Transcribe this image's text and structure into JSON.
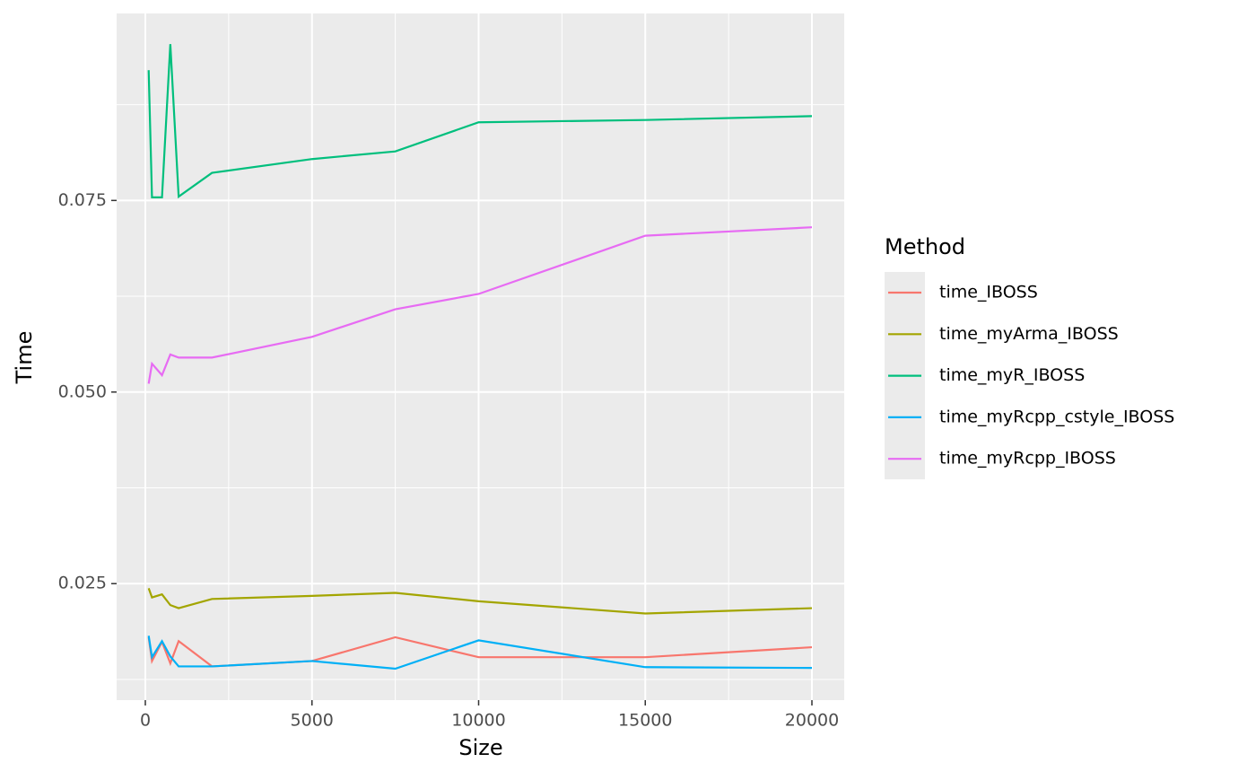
{
  "chart_data": {
    "type": "line",
    "x_label": "Size",
    "y_label": "Time",
    "legend_title": "Method",
    "x": [
      100,
      200,
      500,
      750,
      1000,
      2000,
      5000,
      7500,
      10000,
      15000,
      20000
    ],
    "series": [
      {
        "name": "time_IBOSS",
        "color": "#F8766D",
        "values": [
          0.018,
          0.0149,
          0.0174,
          0.0146,
          0.0175,
          0.0142,
          0.0149,
          0.018,
          0.0154,
          0.0154,
          0.0167
        ]
      },
      {
        "name": "time_myArma_IBOSS",
        "color": "#A3A500",
        "values": [
          0.0244,
          0.0232,
          0.0236,
          0.0222,
          0.0218,
          0.023,
          0.0234,
          0.0238,
          0.0227,
          0.0211,
          0.0218
        ]
      },
      {
        "name": "time_myR_IBOSS",
        "color": "#00BF7D",
        "values": [
          0.092,
          0.0754,
          0.0754,
          0.0954,
          0.0755,
          0.0786,
          0.0804,
          0.0814,
          0.0852,
          0.0855,
          0.086
        ]
      },
      {
        "name": "time_myRcpp_cstyle_IBOSS",
        "color": "#00B0F6",
        "values": [
          0.0182,
          0.0154,
          0.0175,
          0.0155,
          0.0142,
          0.0142,
          0.0149,
          0.0139,
          0.0176,
          0.0141,
          0.014
        ]
      },
      {
        "name": "time_myRcpp_IBOSS",
        "color": "#E76BF3",
        "values": [
          0.0511,
          0.0537,
          0.0522,
          0.0549,
          0.0545,
          0.0545,
          0.0572,
          0.0608,
          0.0628,
          0.0704,
          0.0715
        ]
      }
    ],
    "xlim": [
      -861,
      20969
    ],
    "xticks": [
      0,
      5000,
      10000,
      15000,
      20000
    ],
    "ylim": [
      0.0098,
      0.0994
    ],
    "yticks": [
      {
        "value": 0.025,
        "label": "0.025"
      },
      {
        "value": 0.05,
        "label": "0.050"
      },
      {
        "value": 0.075,
        "label": "0.075"
      }
    ],
    "grid": true,
    "legend": "right"
  }
}
